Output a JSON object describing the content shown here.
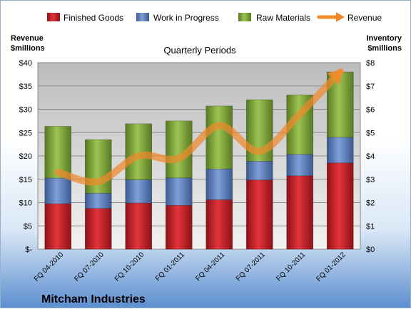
{
  "chart_data": {
    "type": "bar",
    "stacked": true,
    "title": "Quarterly Periods",
    "company": "Mitcham Industries",
    "ylabel_left": [
      "Revenue",
      "$millions"
    ],
    "ylabel_right": [
      "Inventory",
      "$millions"
    ],
    "categories": [
      "FQ 04-2010",
      "FQ 07-2010",
      "FQ 10-2010",
      "FQ 01-2011",
      "FQ 04-2011",
      "FQ 07-2011",
      "FQ 10-2011",
      "FQ 01-2012"
    ],
    "series": [
      {
        "name": "Finished Goods",
        "axis": "right",
        "color": "#c0272d",
        "values": [
          1.95,
          1.75,
          1.98,
          1.88,
          2.12,
          2.97,
          3.15,
          3.7
        ]
      },
      {
        "name": "Work in Progress",
        "axis": "right",
        "color": "#5b7cb8",
        "values": [
          1.1,
          0.65,
          1.0,
          1.18,
          1.32,
          0.8,
          0.92,
          1.1
        ]
      },
      {
        "name": "Raw Materials",
        "axis": "right",
        "color": "#7da23a",
        "values": [
          2.22,
          2.3,
          2.4,
          2.44,
          2.7,
          2.64,
          2.55,
          2.8
        ]
      }
    ],
    "line": {
      "name": "Revenue",
      "axis": "left",
      "color": "#f0892b",
      "values": [
        16.5,
        14.5,
        20.0,
        19.5,
        26.5,
        21.0,
        29.0,
        38.0
      ]
    },
    "ylim_left": [
      0,
      40
    ],
    "ylim_right": [
      0,
      8
    ],
    "yticks_left": [
      "$-",
      "$5",
      "$10",
      "$15",
      "$20",
      "$25",
      "$30",
      "$35",
      "$40"
    ],
    "yticks_right": [
      "$0",
      "$1",
      "$2",
      "$3",
      "$4",
      "$5",
      "$6",
      "$7",
      "$8"
    ],
    "grid": true,
    "legend_position": "top"
  }
}
